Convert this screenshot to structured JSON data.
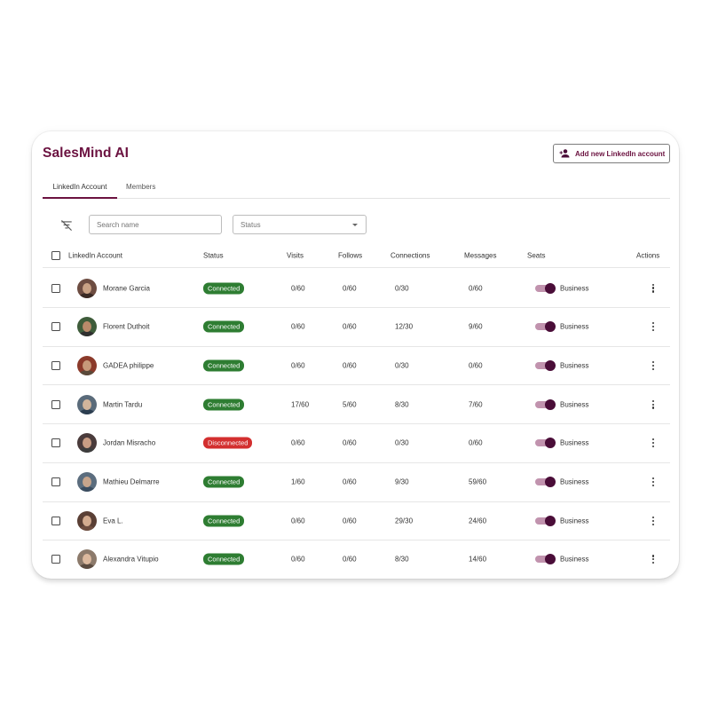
{
  "app": {
    "brand": "SalesMind AI"
  },
  "header": {
    "add_button_label": "Add new LinkedIn account"
  },
  "tabs": [
    {
      "label": "LinkedIn Account",
      "active": true
    },
    {
      "label": "Members",
      "active": false
    }
  ],
  "filters": {
    "search_placeholder": "Search name",
    "status_placeholder": "Status"
  },
  "table": {
    "columns": [
      "LinkedIn Account",
      "Status",
      "Visits",
      "Follows",
      "Connections",
      "Messages",
      "Seats",
      "Actions"
    ],
    "rows": [
      {
        "name": "Morane Garcia",
        "status": "Connected",
        "visits": "0/60",
        "follows": "0/60",
        "connections": "0/30",
        "messages": "0/60",
        "seat": "Business"
      },
      {
        "name": "Florent Duthoit",
        "status": "Connected",
        "visits": "0/60",
        "follows": "0/60",
        "connections": "12/30",
        "messages": "9/60",
        "seat": "Business"
      },
      {
        "name": "GADEA philippe",
        "status": "Connected",
        "visits": "0/60",
        "follows": "0/60",
        "connections": "0/30",
        "messages": "0/60",
        "seat": "Business"
      },
      {
        "name": "Martin Tardu",
        "status": "Connected",
        "visits": "17/60",
        "follows": "5/60",
        "connections": "8/30",
        "messages": "7/60",
        "seat": "Business"
      },
      {
        "name": "Jordan Misracho",
        "status": "Disconnected",
        "visits": "0/60",
        "follows": "0/60",
        "connections": "0/30",
        "messages": "0/60",
        "seat": "Business"
      },
      {
        "name": "Mathieu Delmarre",
        "status": "Connected",
        "visits": "1/60",
        "follows": "0/60",
        "connections": "9/30",
        "messages": "59/60",
        "seat": "Business"
      },
      {
        "name": "Eva L.",
        "status": "Connected",
        "visits": "0/60",
        "follows": "0/60",
        "connections": "29/30",
        "messages": "24/60",
        "seat": "Business"
      },
      {
        "name": "Alexandra Vitupio",
        "status": "Connected",
        "visits": "0/60",
        "follows": "0/60",
        "connections": "8/30",
        "messages": "14/60",
        "seat": "Business"
      }
    ]
  },
  "colors": {
    "brand": "#6b1240",
    "connected": "#2e7d32",
    "disconnected": "#d32f2f",
    "toggle_thumb": "#4a0d38",
    "toggle_track": "#8e3a6c"
  }
}
